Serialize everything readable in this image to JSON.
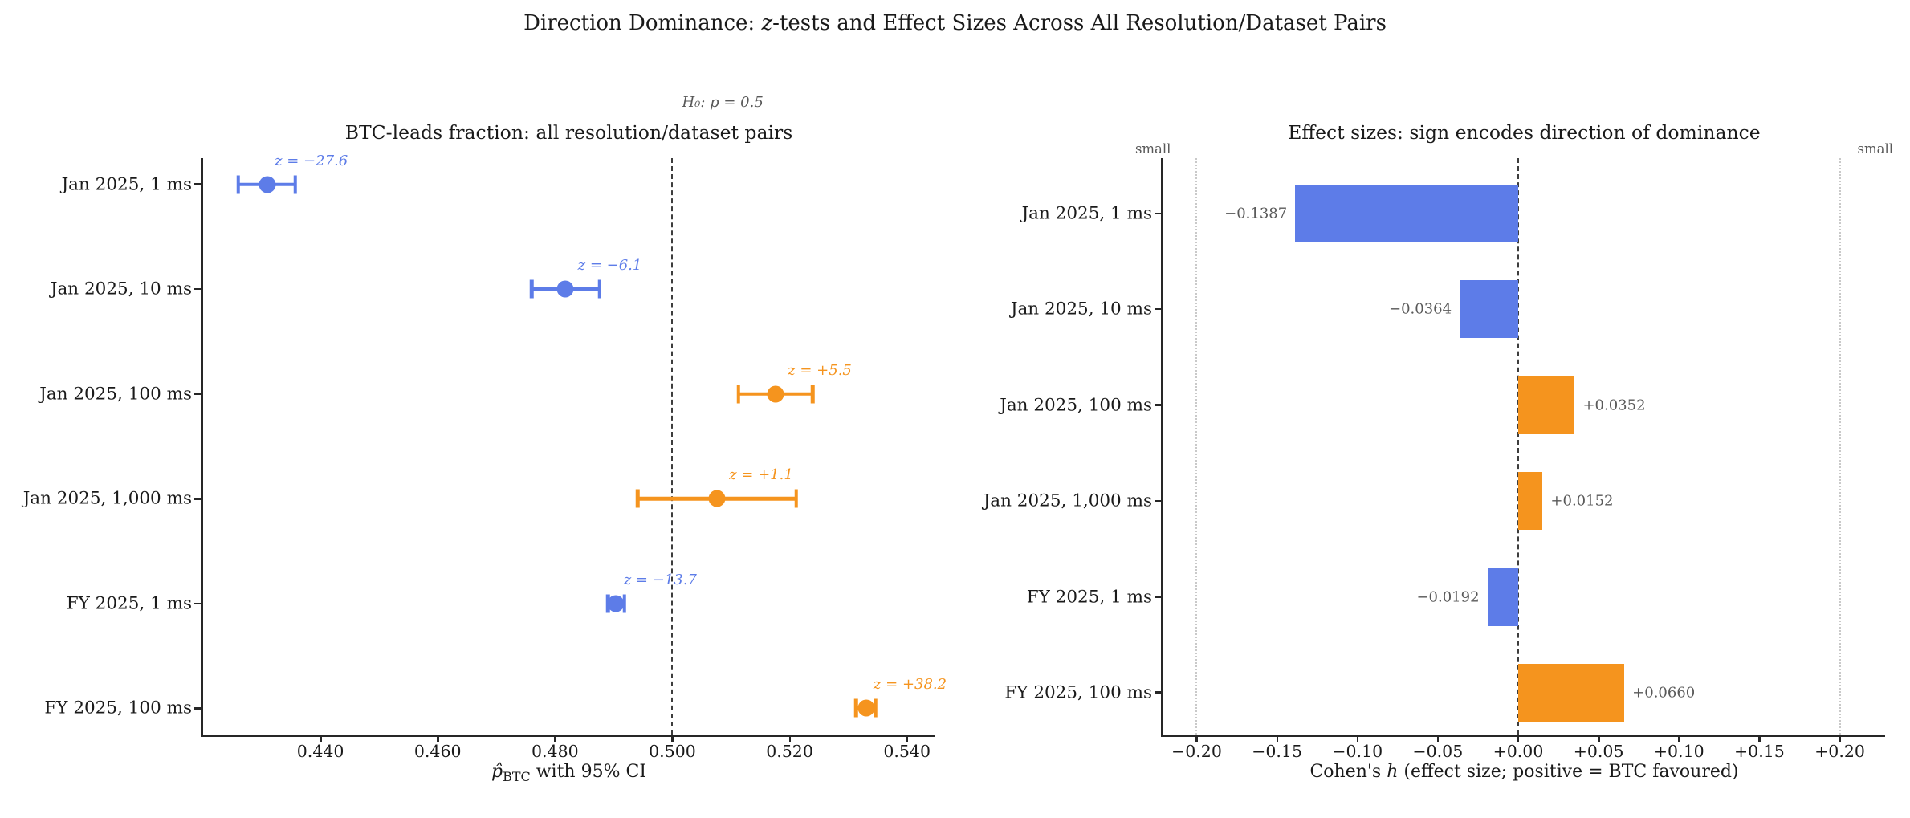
{
  "figure": {
    "title_prefix": "Direction Dominance: ",
    "title_italic": "z",
    "title_suffix": "-tests and Effect Sizes Across All Resolution/Dataset Pairs",
    "background": "#ffffff"
  },
  "colors": {
    "btc_favoured_orange": "#F5941E",
    "eth_favoured_blue": "#5D7CE8",
    "annotation_gray": "#595959",
    "axis_dark": "#262626",
    "threshold_dotted_gray": "#c9c9c9"
  },
  "chart_data": [
    {
      "type": "scatter",
      "title": "BTC-leads fraction: all resolution/dataset pairs",
      "annotation": "H₀: p = 0.5",
      "xlabel_hat": "p̂",
      "xlabel_sub": "BTC",
      "xlabel_rest": " with 95% CI",
      "xlim": [
        0.42,
        0.5447
      ],
      "xticks": [
        0.44,
        0.46,
        0.48,
        0.5,
        0.52,
        0.54
      ],
      "xtick_labels": [
        "0.440",
        "0.460",
        "0.480",
        "0.500",
        "0.520",
        "0.540"
      ],
      "ref_line_x": 0.5,
      "grid": false,
      "categories": [
        "Jan 2025, 1 ms",
        "Jan 2025, 10 ms",
        "Jan 2025, 100 ms",
        "Jan 2025, 1,000 ms",
        "FY 2025, 1 ms",
        "FY 2025, 100 ms"
      ],
      "points": [
        {
          "p": 0.4309,
          "ci_low": 0.426,
          "ci_high": 0.4357,
          "z": -27.6,
          "z_label": "z = −27.6",
          "direction": "eth"
        },
        {
          "p": 0.4818,
          "ci_low": 0.476,
          "ci_high": 0.4876,
          "z": -6.1,
          "z_label": "z = −6.1",
          "direction": "eth"
        },
        {
          "p": 0.5176,
          "ci_low": 0.5113,
          "ci_high": 0.5239,
          "z": 5.5,
          "z_label": "z = +5.5",
          "direction": "btc"
        },
        {
          "p": 0.5076,
          "ci_low": 0.4941,
          "ci_high": 0.5211,
          "z": 1.1,
          "z_label": "z = +1.1",
          "direction": "btc"
        },
        {
          "p": 0.4904,
          "ci_low": 0.489,
          "ci_high": 0.4918,
          "z": -13.7,
          "z_label": "z = −13.7",
          "direction": "eth"
        },
        {
          "p": 0.533,
          "ci_low": 0.5313,
          "ci_high": 0.5347,
          "z": 38.2,
          "z_label": "z = +38.2",
          "direction": "btc"
        }
      ]
    },
    {
      "type": "bar",
      "title": "Effect sizes: sign encodes direction of dominance",
      "xlabel_prefix": "Cohen's ",
      "xlabel_italic": "h",
      "xlabel_suffix": " (effect size; positive = BTC favoured)",
      "xlim": [
        -0.2207,
        0.2282
      ],
      "xticks": [
        -0.2,
        -0.15,
        -0.1,
        -0.05,
        0.0,
        0.05,
        0.1,
        0.15,
        0.2
      ],
      "xtick_labels": [
        "−0.20",
        "−0.15",
        "−0.10",
        "−0.05",
        "+0.00",
        "+0.05",
        "+0.10",
        "+0.15",
        "+0.20"
      ],
      "ref_line_x": 0.0,
      "threshold_lines": [
        -0.2,
        0.2
      ],
      "threshold_label": "small",
      "grid": false,
      "legend": "none",
      "categories": [
        "Jan 2025, 1 ms",
        "Jan 2025, 10 ms",
        "Jan 2025, 100 ms",
        "Jan 2025, 1,000 ms",
        "FY 2025, 1 ms",
        "FY 2025, 100 ms"
      ],
      "values": [
        -0.1387,
        -0.0364,
        0.0352,
        0.0152,
        -0.0192,
        0.066
      ],
      "value_labels": [
        "−0.1387",
        "−0.0364",
        "+0.0352",
        "+0.0152",
        "−0.0192",
        "+0.0660"
      ]
    }
  ]
}
